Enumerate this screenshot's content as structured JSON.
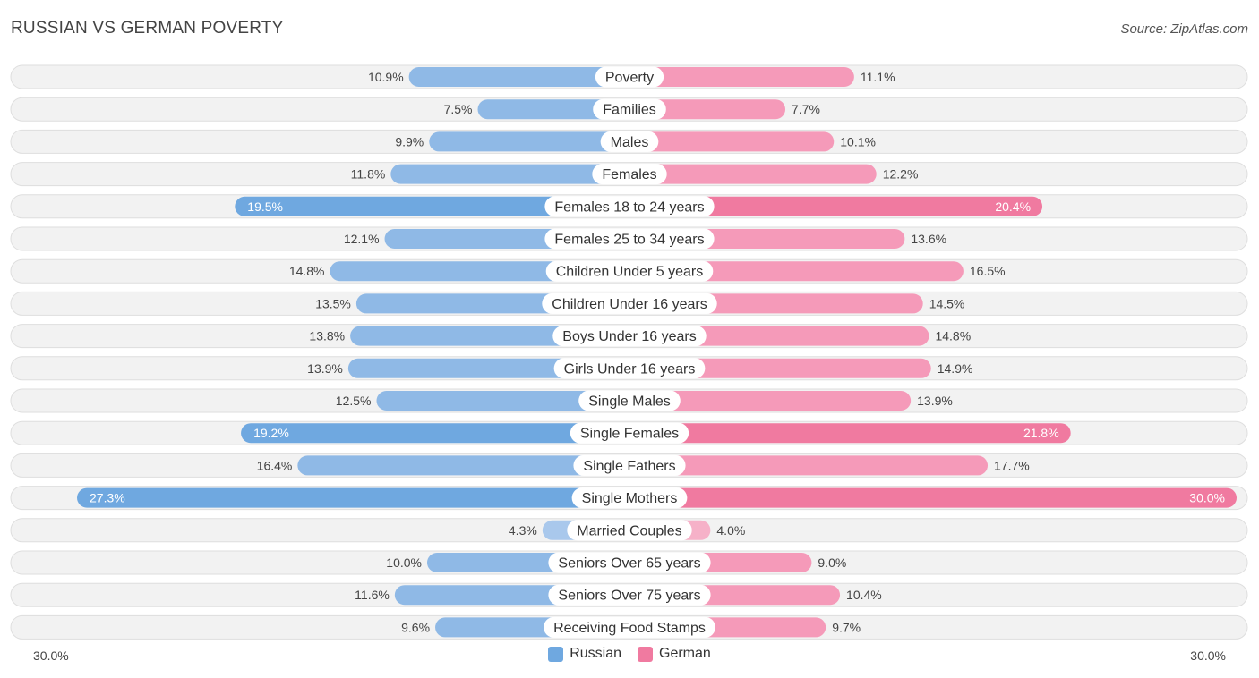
{
  "header": {
    "title": "RUSSIAN VS GERMAN POVERTY",
    "source": "Source: ZipAtlas.com"
  },
  "colors": {
    "russian": "#6fa8e0",
    "russian_light": "#a9c8ec",
    "german": "#f07aa0",
    "german_light": "#f6b1c8"
  },
  "legend": {
    "russian": "Russian",
    "german": "German"
  },
  "axis": {
    "left_label": "30.0%",
    "right_label": "30.0%"
  },
  "chart_data": {
    "type": "bar",
    "orientation": "horizontal-diverging",
    "title": "RUSSIAN VS GERMAN POVERTY",
    "xlim": [
      0,
      30
    ],
    "categories": [
      "Poverty",
      "Families",
      "Males",
      "Females",
      "Females 18 to 24 years",
      "Females 25 to 34 years",
      "Children Under 5 years",
      "Children Under 16 years",
      "Boys Under 16 years",
      "Girls Under 16 years",
      "Single Males",
      "Single Females",
      "Single Fathers",
      "Single Mothers",
      "Married Couples",
      "Seniors Over 65 years",
      "Seniors Over 75 years",
      "Receiving Food Stamps"
    ],
    "series": [
      {
        "name": "Russian",
        "values": [
          10.9,
          7.5,
          9.9,
          11.8,
          19.5,
          12.1,
          14.8,
          13.5,
          13.8,
          13.9,
          12.5,
          19.2,
          16.4,
          27.3,
          4.3,
          10.0,
          11.6,
          9.6
        ],
        "labels": [
          "10.9%",
          "7.5%",
          "9.9%",
          "11.8%",
          "19.5%",
          "12.1%",
          "14.8%",
          "13.5%",
          "13.8%",
          "13.9%",
          "12.5%",
          "19.2%",
          "16.4%",
          "27.3%",
          "4.3%",
          "10.0%",
          "11.6%",
          "9.6%"
        ]
      },
      {
        "name": "German",
        "values": [
          11.1,
          7.7,
          10.1,
          12.2,
          20.4,
          13.6,
          16.5,
          14.5,
          14.8,
          14.9,
          13.9,
          21.8,
          17.7,
          30.0,
          4.0,
          9.0,
          10.4,
          9.7
        ],
        "labels": [
          "11.1%",
          "7.7%",
          "10.1%",
          "12.2%",
          "20.4%",
          "13.6%",
          "16.5%",
          "14.5%",
          "14.8%",
          "14.9%",
          "13.9%",
          "21.8%",
          "17.7%",
          "30.0%",
          "4.0%",
          "9.0%",
          "10.4%",
          "9.7%"
        ]
      }
    ],
    "legend_position": "bottom-center"
  }
}
